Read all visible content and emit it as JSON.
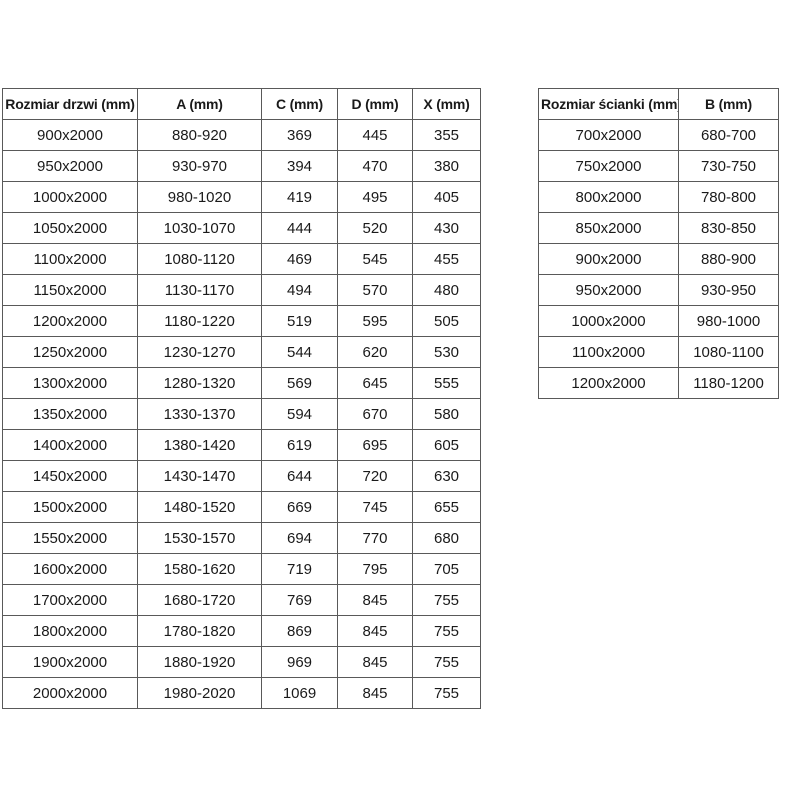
{
  "colors": {
    "border": "#595959",
    "text": "#1a1a1a",
    "background": "#ffffff"
  },
  "doors_table": {
    "headers": [
      "Rozmiar drzwi (mm)",
      "A (mm)",
      "C (mm)",
      "D (mm)",
      "X (mm)"
    ],
    "rows": [
      [
        "900x2000",
        "880-920",
        "369",
        "445",
        "355"
      ],
      [
        "950x2000",
        "930-970",
        "394",
        "470",
        "380"
      ],
      [
        "1000x2000",
        "980-1020",
        "419",
        "495",
        "405"
      ],
      [
        "1050x2000",
        "1030-1070",
        "444",
        "520",
        "430"
      ],
      [
        "1100x2000",
        "1080-1120",
        "469",
        "545",
        "455"
      ],
      [
        "1150x2000",
        "1130-1170",
        "494",
        "570",
        "480"
      ],
      [
        "1200x2000",
        "1180-1220",
        "519",
        "595",
        "505"
      ],
      [
        "1250x2000",
        "1230-1270",
        "544",
        "620",
        "530"
      ],
      [
        "1300x2000",
        "1280-1320",
        "569",
        "645",
        "555"
      ],
      [
        "1350x2000",
        "1330-1370",
        "594",
        "670",
        "580"
      ],
      [
        "1400x2000",
        "1380-1420",
        "619",
        "695",
        "605"
      ],
      [
        "1450x2000",
        "1430-1470",
        "644",
        "720",
        "630"
      ],
      [
        "1500x2000",
        "1480-1520",
        "669",
        "745",
        "655"
      ],
      [
        "1550x2000",
        "1530-1570",
        "694",
        "770",
        "680"
      ],
      [
        "1600x2000",
        "1580-1620",
        "719",
        "795",
        "705"
      ],
      [
        "1700x2000",
        "1680-1720",
        "769",
        "845",
        "755"
      ],
      [
        "1800x2000",
        "1780-1820",
        "869",
        "845",
        "755"
      ],
      [
        "1900x2000",
        "1880-1920",
        "969",
        "845",
        "755"
      ],
      [
        "2000x2000",
        "1980-2020",
        "1069",
        "845",
        "755"
      ]
    ]
  },
  "walls_table": {
    "headers": [
      "Rozmiar ścianki (mm)",
      "B (mm)"
    ],
    "rows": [
      [
        "700x2000",
        "680-700"
      ],
      [
        "750x2000",
        "730-750"
      ],
      [
        "800x2000",
        "780-800"
      ],
      [
        "850x2000",
        "830-850"
      ],
      [
        "900x2000",
        "880-900"
      ],
      [
        "950x2000",
        "930-950"
      ],
      [
        "1000x2000",
        "980-1000"
      ],
      [
        "1100x2000",
        "1080-1100"
      ],
      [
        "1200x2000",
        "1180-1200"
      ]
    ]
  }
}
